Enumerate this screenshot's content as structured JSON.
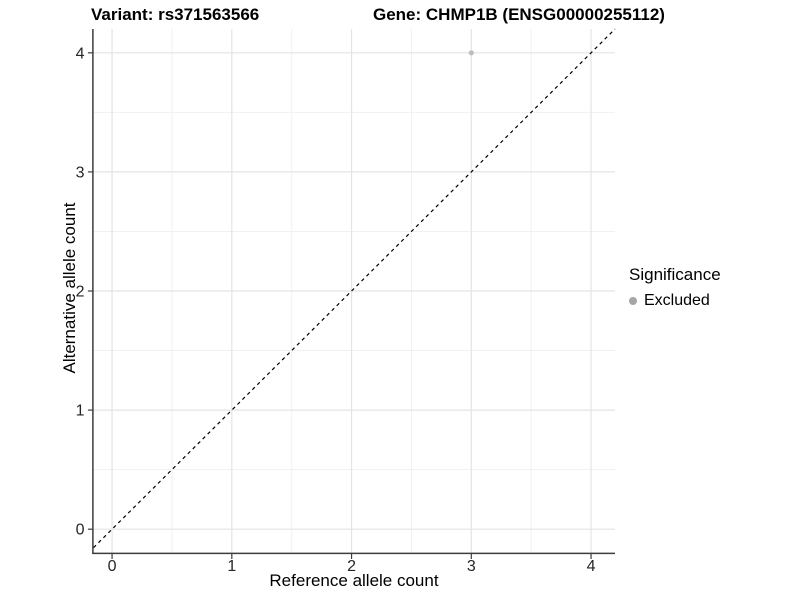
{
  "figure": {
    "background": "#ffffff"
  },
  "header": {
    "variant_title": "Variant: rs371563566",
    "gene_title": "Gene: CHMP1B (ENSG00000255112)"
  },
  "legend": {
    "title": "Significance",
    "items": [
      {
        "label": "Excluded",
        "marker": "circle-icon",
        "color": "#a6a6a6"
      }
    ]
  },
  "chart_data": {
    "type": "scatter",
    "title_left": "Variant: rs371563566",
    "title_right": "Gene: CHMP1B (ENSG00000255112)",
    "xlabel": "Reference allele count",
    "ylabel": "Alternative allele count",
    "xlim": [
      -0.155,
      4.2
    ],
    "ylim": [
      -0.2,
      4.2
    ],
    "xticks": [
      0,
      1,
      2,
      3,
      4
    ],
    "yticks": [
      0,
      1,
      2,
      3,
      4
    ],
    "x_minor_ticks": [
      0.5,
      1.5,
      2.5,
      3.5
    ],
    "y_minor_ticks": [
      0.5,
      1.5,
      2.5,
      3.5
    ],
    "grid": "major+minor",
    "legend_position": "right",
    "series": [
      {
        "name": "Excluded",
        "color": "#bdbdbd",
        "points": [
          {
            "x": 3,
            "y": 4
          }
        ]
      }
    ],
    "reference_line": {
      "slope": 1,
      "intercept": 0,
      "style": "dashed",
      "color": "#000000",
      "dash": "3.5,3.5"
    },
    "colors": {
      "grid_major": "#e4e4e4",
      "grid_minor": "#f1f1f1",
      "axis_line": "#3c3c3c",
      "tick_mark": "#3c3c3c",
      "tick_label": "#262626"
    }
  }
}
